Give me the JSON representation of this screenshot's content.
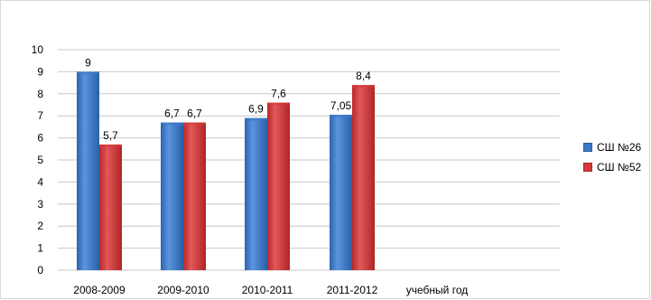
{
  "chart_data": {
    "type": "bar",
    "categories": [
      "2008-2009",
      "2009-2010",
      "2010-2011",
      "2011-2012"
    ],
    "xlabel": "учебный год",
    "ylim": [
      0,
      10
    ],
    "yticks": [
      "0",
      "1",
      "2",
      "3",
      "4",
      "5",
      "6",
      "7",
      "8",
      "9",
      "10"
    ],
    "grid": true,
    "legend_position": "right",
    "series": [
      {
        "name": "СШ №26",
        "color": "#3a78c9",
        "values": [
          9,
          6.7,
          6.9,
          7.05
        ],
        "labels": [
          "9",
          "6,7",
          "6,9",
          "7,05"
        ]
      },
      {
        "name": "СШ №52",
        "color": "#d63a3a",
        "values": [
          5.7,
          6.7,
          7.6,
          8.4
        ],
        "labels": [
          "5,7",
          "6,7",
          "7,6",
          "8,4"
        ]
      }
    ]
  }
}
